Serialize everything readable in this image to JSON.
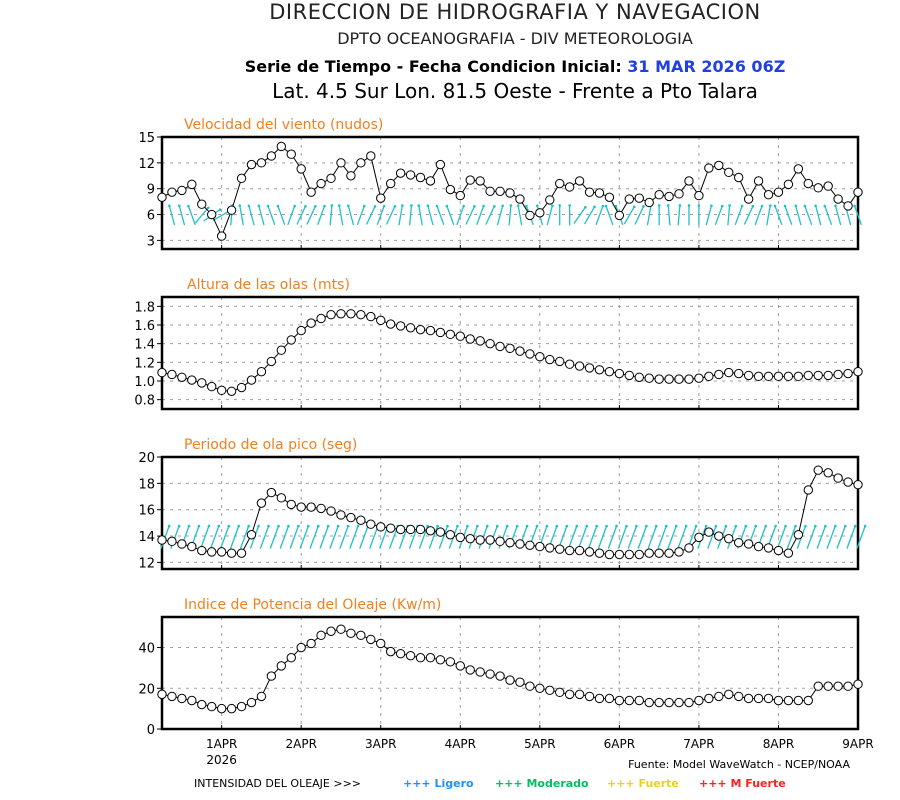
{
  "header": {
    "line1": "DIRECCION DE HIDROGRAFIA Y NAVEGACION",
    "line2": "DPTO OCEANOGRAFIA - DIV METEOROLOGIA",
    "line3_prefix": "Serie de Tiempo - Fecha Condicion Inicial:",
    "line3_date": "31 MAR 2026 06Z",
    "line4": "Lat. 4.5 Sur  Lon. 81.5 Oeste - Frente a Pto Talara"
  },
  "footer": {
    "source": "Fuente: Model WaveWatch - NCEP/NOAA",
    "intensity_label": "INTENSIDAD DEL OLEAJE >>>",
    "legend": [
      {
        "label": "+++ Ligero",
        "color": "#1e90ff"
      },
      {
        "label": "+++ Moderado",
        "color": "#00c060"
      },
      {
        "label": "+++ Fuerte",
        "color": "#e8d020"
      },
      {
        "label": "+++ M Fuerte",
        "color": "#ff2020"
      }
    ]
  },
  "colors": {
    "title": "#f08020",
    "arrow": "#20c0c8",
    "line": "#000000",
    "grid": "#a0a0a0",
    "date": "#2040e0"
  },
  "chart_data": [
    {
      "type": "line",
      "title": "Velocidad del viento (nudos)",
      "ylim": [
        2,
        15
      ],
      "yticks": [
        3,
        6,
        9,
        12,
        15
      ],
      "ytick_labels": [
        "3",
        "6",
        "9",
        "12",
        "15"
      ],
      "x_start": "31 MAR 2026 06Z",
      "x_step_hours": 3,
      "values": [
        8.0,
        8.6,
        8.8,
        9.5,
        7.2,
        6.0,
        3.5,
        6.5,
        10.2,
        11.8,
        12.0,
        12.8,
        13.9,
        13.0,
        11.3,
        8.6,
        9.6,
        10.2,
        12.0,
        10.5,
        12.0,
        12.8,
        7.9,
        9.6,
        10.8,
        10.6,
        10.3,
        9.9,
        11.8,
        8.9,
        8.2,
        10.0,
        9.9,
        8.7,
        8.7,
        8.5,
        7.8,
        5.9,
        6.2,
        7.7,
        9.6,
        9.2,
        9.9,
        8.6,
        8.5,
        8.0,
        5.9,
        7.8,
        7.9,
        7.4,
        8.3,
        8.1,
        8.4,
        9.9,
        8.2,
        11.4,
        11.7,
        10.9,
        10.3,
        7.8,
        9.9,
        8.3,
        8.6,
        9.5,
        11.3,
        9.6,
        9.1,
        9.3,
        7.8,
        7.0,
        8.6
      ],
      "arrow_direction_deg": [
        350,
        345,
        345,
        340,
        40,
        55,
        60,
        5,
        350,
        345,
        345,
        340,
        340,
        20,
        25,
        25,
        20,
        5,
        350,
        345,
        20,
        25,
        20,
        25,
        10,
        5,
        350,
        345,
        340,
        340,
        20,
        25,
        20,
        25,
        15,
        5,
        350,
        340,
        345,
        15,
        0,
        0,
        35,
        30,
        20,
        340,
        340,
        30,
        25,
        10,
        0,
        355,
        5,
        0,
        0,
        15,
        20,
        5,
        20,
        25,
        20,
        10,
        340,
        340,
        345,
        340,
        345,
        340,
        345,
        345,
        340
      ]
    },
    {
      "type": "line",
      "title": "Altura de las olas (mts)",
      "ylim": [
        0.7,
        1.9
      ],
      "yticks": [
        0.8,
        1.0,
        1.2,
        1.4,
        1.6,
        1.8
      ],
      "ytick_labels": [
        "0.8",
        "1.0",
        "1.2",
        "1.4",
        "1.6",
        "1.8"
      ],
      "x_start": "31 MAR 2026 06Z",
      "x_step_hours": 3,
      "values": [
        1.09,
        1.07,
        1.04,
        1.01,
        0.98,
        0.94,
        0.9,
        0.89,
        0.93,
        1.01,
        1.1,
        1.21,
        1.33,
        1.44,
        1.54,
        1.62,
        1.67,
        1.71,
        1.72,
        1.72,
        1.71,
        1.69,
        1.65,
        1.61,
        1.59,
        1.57,
        1.55,
        1.54,
        1.52,
        1.5,
        1.48,
        1.45,
        1.43,
        1.4,
        1.37,
        1.35,
        1.32,
        1.29,
        1.26,
        1.23,
        1.21,
        1.18,
        1.16,
        1.14,
        1.12,
        1.1,
        1.08,
        1.06,
        1.04,
        1.03,
        1.02,
        1.02,
        1.02,
        1.02,
        1.03,
        1.05,
        1.07,
        1.09,
        1.08,
        1.06,
        1.05,
        1.05,
        1.05,
        1.05,
        1.05,
        1.06,
        1.06,
        1.06,
        1.07,
        1.08,
        1.1
      ]
    },
    {
      "type": "line",
      "title": "Periodo de ola pico (seg)",
      "ylim": [
        11.5,
        20
      ],
      "yticks": [
        12,
        14,
        16,
        18,
        20
      ],
      "ytick_labels": [
        "12",
        "14",
        "16",
        "18",
        "20"
      ],
      "x_start": "31 MAR 2026 06Z",
      "x_step_hours": 3,
      "values": [
        13.7,
        13.6,
        13.4,
        13.2,
        12.9,
        12.8,
        12.8,
        12.7,
        12.7,
        14.1,
        16.5,
        17.3,
        16.9,
        16.4,
        16.2,
        16.2,
        16.1,
        15.9,
        15.6,
        15.4,
        15.2,
        14.9,
        14.7,
        14.6,
        14.5,
        14.5,
        14.5,
        14.4,
        14.3,
        14.1,
        13.9,
        13.8,
        13.7,
        13.7,
        13.6,
        13.5,
        13.4,
        13.3,
        13.2,
        13.1,
        13.0,
        12.9,
        12.9,
        12.8,
        12.7,
        12.6,
        12.6,
        12.6,
        12.6,
        12.7,
        12.7,
        12.7,
        12.8,
        13.1,
        13.9,
        14.3,
        14.0,
        13.8,
        13.5,
        13.4,
        13.2,
        13.1,
        12.9,
        12.7,
        14.1,
        17.5,
        19.0,
        18.8,
        18.4,
        18.1,
        17.9
      ],
      "arrow_direction_deg": 20
    },
    {
      "type": "line",
      "title": "Indice de Potencia del Oleaje (Kw/m)",
      "ylim": [
        0,
        55
      ],
      "yticks": [
        0,
        20,
        40
      ],
      "ytick_labels": [
        "0",
        "20",
        "40"
      ],
      "x_start": "31 MAR 2026 06Z",
      "x_step_hours": 3,
      "xtick_labels": [
        "1APR",
        "2APR",
        "3APR",
        "4APR",
        "5APR",
        "6APR",
        "7APR",
        "8APR",
        "9APR"
      ],
      "xtick_sublabel": "2026",
      "values": [
        17,
        16,
        15,
        14,
        12,
        11,
        10,
        10,
        11,
        13,
        16,
        26,
        31,
        35,
        40,
        42,
        46,
        48,
        49,
        47,
        46,
        44,
        42,
        38,
        37,
        36,
        35,
        35,
        34,
        33,
        31,
        29,
        28,
        27,
        26,
        24,
        23,
        21,
        20,
        19,
        18,
        17,
        17,
        16,
        15,
        15,
        14,
        14,
        14,
        13,
        13,
        13,
        13,
        13,
        14,
        15,
        16,
        17,
        16,
        15,
        15,
        15,
        14,
        14,
        14,
        14,
        21,
        21,
        21,
        21,
        22
      ]
    }
  ]
}
